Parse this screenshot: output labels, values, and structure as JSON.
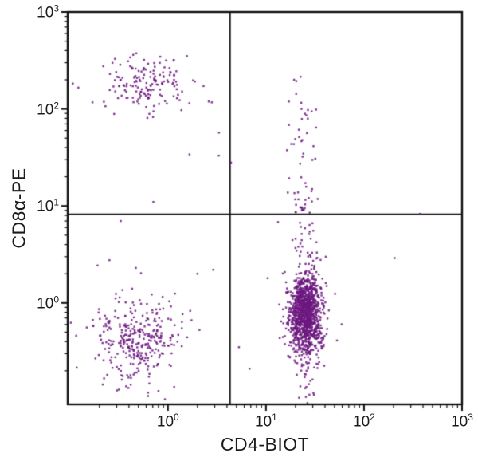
{
  "chart_data": {
    "type": "scatter",
    "title": "",
    "subtitle": "",
    "xlabel": "CD4-BIOT",
    "ylabel": "CD8α-PE",
    "x_scale": "log",
    "y_scale": "log",
    "xlim": [
      0.095,
      1000
    ],
    "ylim": [
      0.09,
      1000
    ],
    "x_tick_exponents": [
      0,
      1,
      2,
      3
    ],
    "y_tick_exponents": [
      0,
      1,
      2,
      3
    ],
    "tick_base": "10",
    "grid": false,
    "legend": null,
    "dot_color": "#6c1880",
    "dot_alpha": 0.88,
    "axis_color": "#111111",
    "quadrant_gate": {
      "x": 4.3,
      "y": 8.2
    },
    "rng_seed": 20,
    "clusters": [
      {
        "name": "cd8-pos-cd4-neg-upper-left",
        "type": "gauss",
        "count": 150,
        "cx": -0.22,
        "cy": 2.27,
        "sx": 0.19,
        "sy": 0.13
      },
      {
        "name": "cd8-pos-halo",
        "type": "gauss",
        "count": 14,
        "cx": -0.2,
        "cy": 2.2,
        "sx": 0.33,
        "sy": 0.27
      },
      {
        "name": "cd4-cd8-double-pos-streak",
        "type": "vstreak",
        "count": 55,
        "cx": 1.37,
        "sx": 0.065,
        "ylo": 0.93,
        "yhi": 2.35,
        "pow": 1.5
      },
      {
        "name": "double-neg-lower-left",
        "type": "gauss",
        "count": 300,
        "cx": -0.32,
        "cy": -0.38,
        "sx": 0.2,
        "sy": 0.19
      },
      {
        "name": "double-neg-halo",
        "type": "gauss",
        "count": 34,
        "cx": -0.3,
        "cy": -0.34,
        "sx": 0.38,
        "sy": 0.33
      },
      {
        "name": "cd4-pos-core-lower-right",
        "type": "gauss",
        "count": 980,
        "cx": 1.4,
        "cy": -0.11,
        "sx": 0.075,
        "sy": 0.2
      },
      {
        "name": "cd4-pos-tail",
        "type": "gauss",
        "count": 300,
        "cx": 1.4,
        "cy": -0.1,
        "sx": 0.105,
        "sy": 0.42
      }
    ],
    "outlier_points": [
      [
        0.107,
        183
      ],
      [
        0.122,
        166
      ],
      [
        0.17,
        117
      ],
      [
        2.8,
        117
      ],
      [
        1.66,
        34
      ],
      [
        3.3,
        33
      ],
      [
        4.4,
        28
      ],
      [
        0.71,
        11
      ],
      [
        0.33,
        7.0
      ],
      [
        0.47,
        2.3
      ],
      [
        2.0,
        2.0
      ],
      [
        2.9,
        2.2
      ],
      [
        5.3,
        0.35
      ],
      [
        6.8,
        0.21
      ],
      [
        10.4,
        1.8
      ],
      [
        373,
        8.3
      ],
      [
        205,
        2.9
      ],
      [
        53,
        0.41
      ]
    ]
  }
}
